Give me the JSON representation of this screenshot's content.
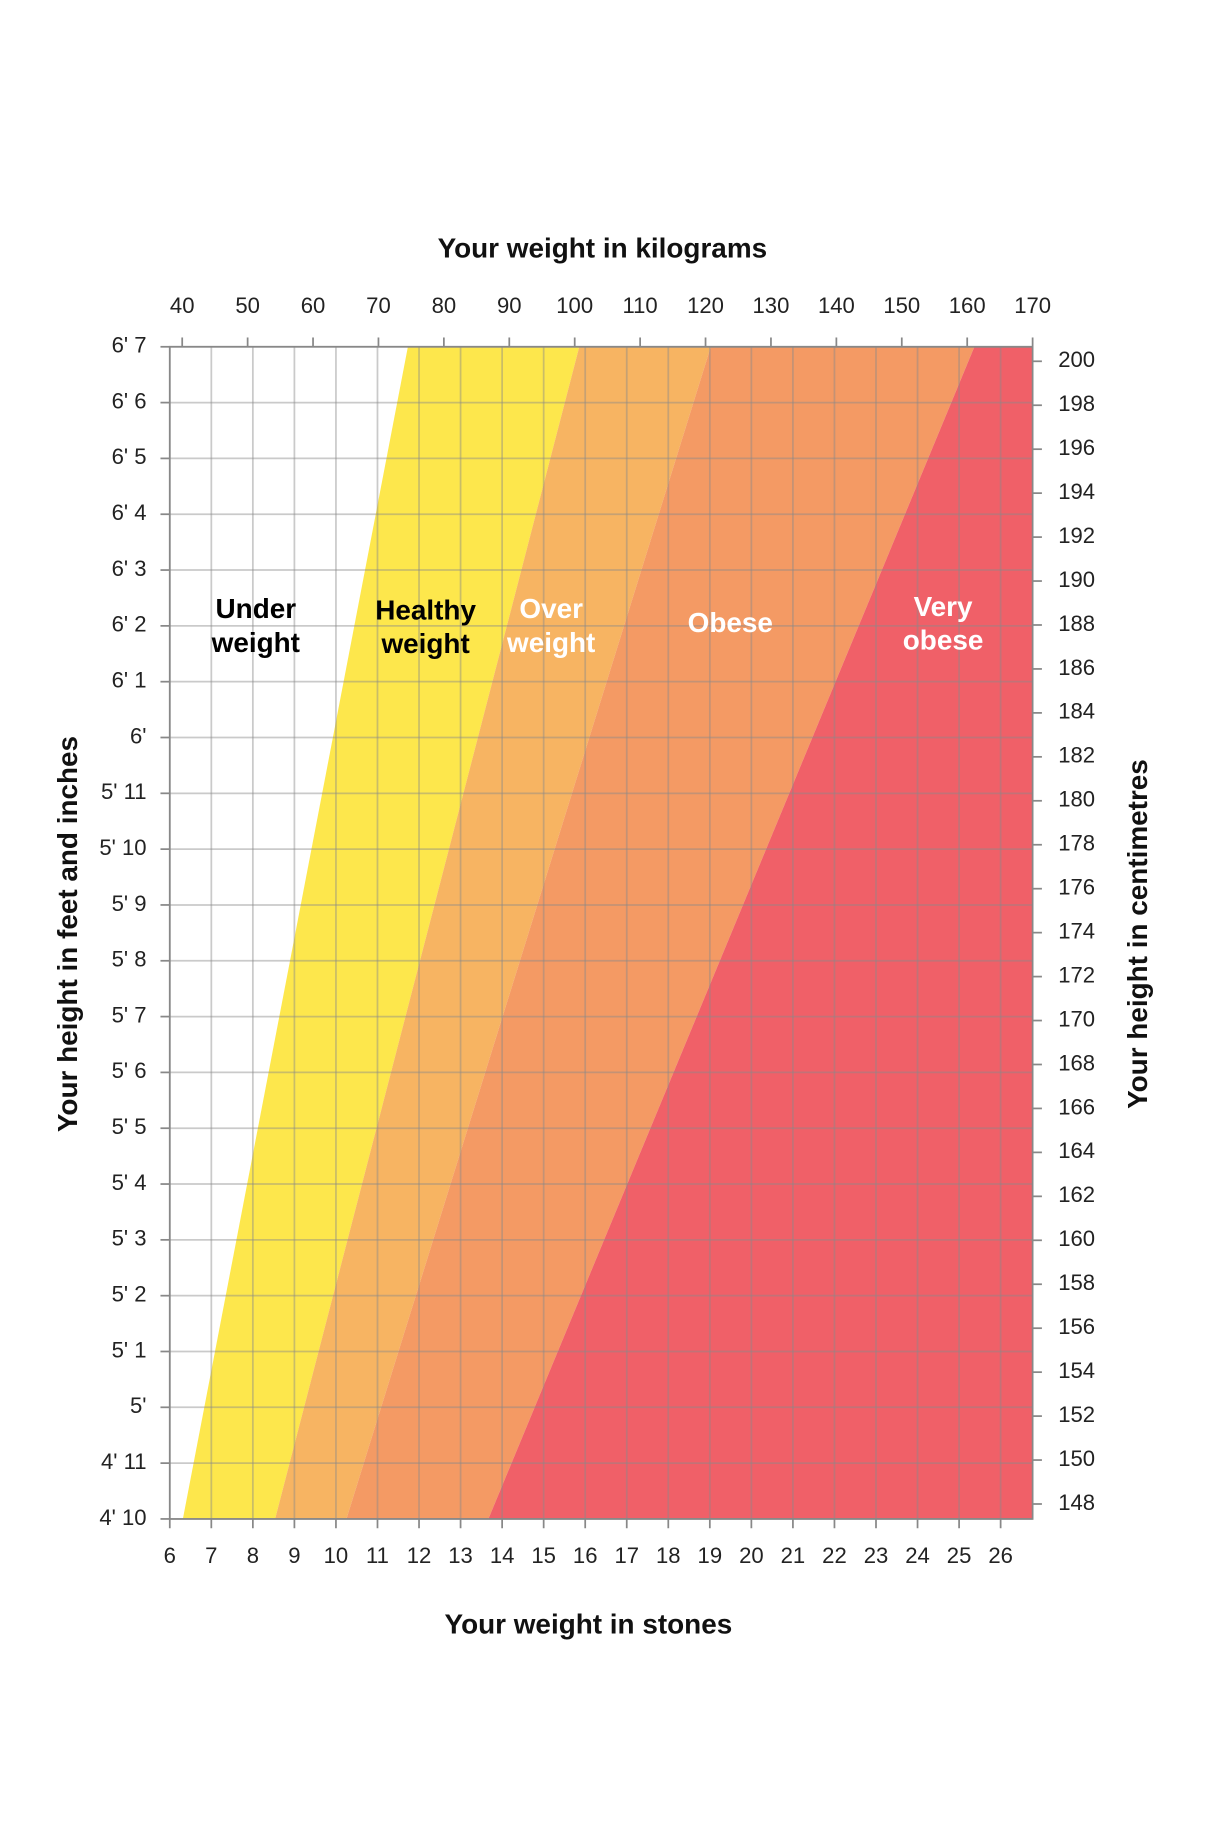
{
  "chart_data": {
    "type": "zones",
    "x_title": "Your weight in stones",
    "x2_title": "Your weight in kilograms",
    "y_title": "Your height in feet and inches",
    "y2_title": "Your height in centimetres",
    "xlim": [
      6,
      26.77
    ],
    "xticks": [
      6,
      7,
      8,
      9,
      10,
      11,
      12,
      13,
      14,
      15,
      16,
      17,
      18,
      19,
      20,
      21,
      22,
      23,
      24,
      25,
      26
    ],
    "x2lim": [
      38.1,
      170
    ],
    "x2ticks": [
      40,
      50,
      60,
      70,
      80,
      90,
      100,
      110,
      120,
      130,
      140,
      150,
      160,
      170
    ],
    "ylim": [
      58,
      79
    ],
    "yticks": [
      {
        "value": 58,
        "label": "4' 10"
      },
      {
        "value": 59,
        "label": "4' 11"
      },
      {
        "value": 60,
        "label": "5'"
      },
      {
        "value": 61,
        "label": "5' 1"
      },
      {
        "value": 62,
        "label": "5' 2"
      },
      {
        "value": 63,
        "label": "5' 3"
      },
      {
        "value": 64,
        "label": "5' 4"
      },
      {
        "value": 65,
        "label": "5' 5"
      },
      {
        "value": 66,
        "label": "5' 6"
      },
      {
        "value": 67,
        "label": "5' 7"
      },
      {
        "value": 68,
        "label": "5' 8"
      },
      {
        "value": 69,
        "label": "5' 9"
      },
      {
        "value": 70,
        "label": "5' 10"
      },
      {
        "value": 71,
        "label": "5' 11"
      },
      {
        "value": 72,
        "label": "6'"
      },
      {
        "value": 73,
        "label": "6' 1"
      },
      {
        "value": 74,
        "label": "6' 2"
      },
      {
        "value": 75,
        "label": "6' 3"
      },
      {
        "value": 76,
        "label": "6' 4"
      },
      {
        "value": 77,
        "label": "6' 5"
      },
      {
        "value": 78,
        "label": "6' 6"
      },
      {
        "value": 79,
        "label": "6' 7"
      }
    ],
    "y2lim": [
      147.32,
      200.66
    ],
    "y2ticks": [
      148,
      150,
      152,
      154,
      156,
      158,
      160,
      162,
      164,
      166,
      168,
      170,
      172,
      174,
      176,
      178,
      180,
      182,
      184,
      186,
      188,
      190,
      192,
      194,
      196,
      198,
      200
    ],
    "grid": true,
    "zones": [
      {
        "label": [
          "Under",
          "weight"
        ],
        "color": "#ffffff",
        "text_color": "#000000"
      },
      {
        "label": [
          "Healthy",
          "weight"
        ],
        "color": "#fde74c",
        "text_color": "#000000",
        "boundary_kg": [
          40.1,
          74.5
        ]
      },
      {
        "label": [
          "Over",
          "weight"
        ],
        "color": "#f7b462",
        "text_color": "#ffffff",
        "boundary_kg": [
          54.2,
          100.7
        ]
      },
      {
        "label": [
          "Obese"
        ],
        "color": "#f49a64",
        "text_color": "#ffffff",
        "boundary_kg": [
          65.1,
          120.8
        ]
      },
      {
        "label": [
          "Very",
          "obese"
        ],
        "color": "#f06068",
        "text_color": "#ffffff",
        "boundary_kg": [
          86.8,
          161.1
        ]
      }
    ]
  }
}
